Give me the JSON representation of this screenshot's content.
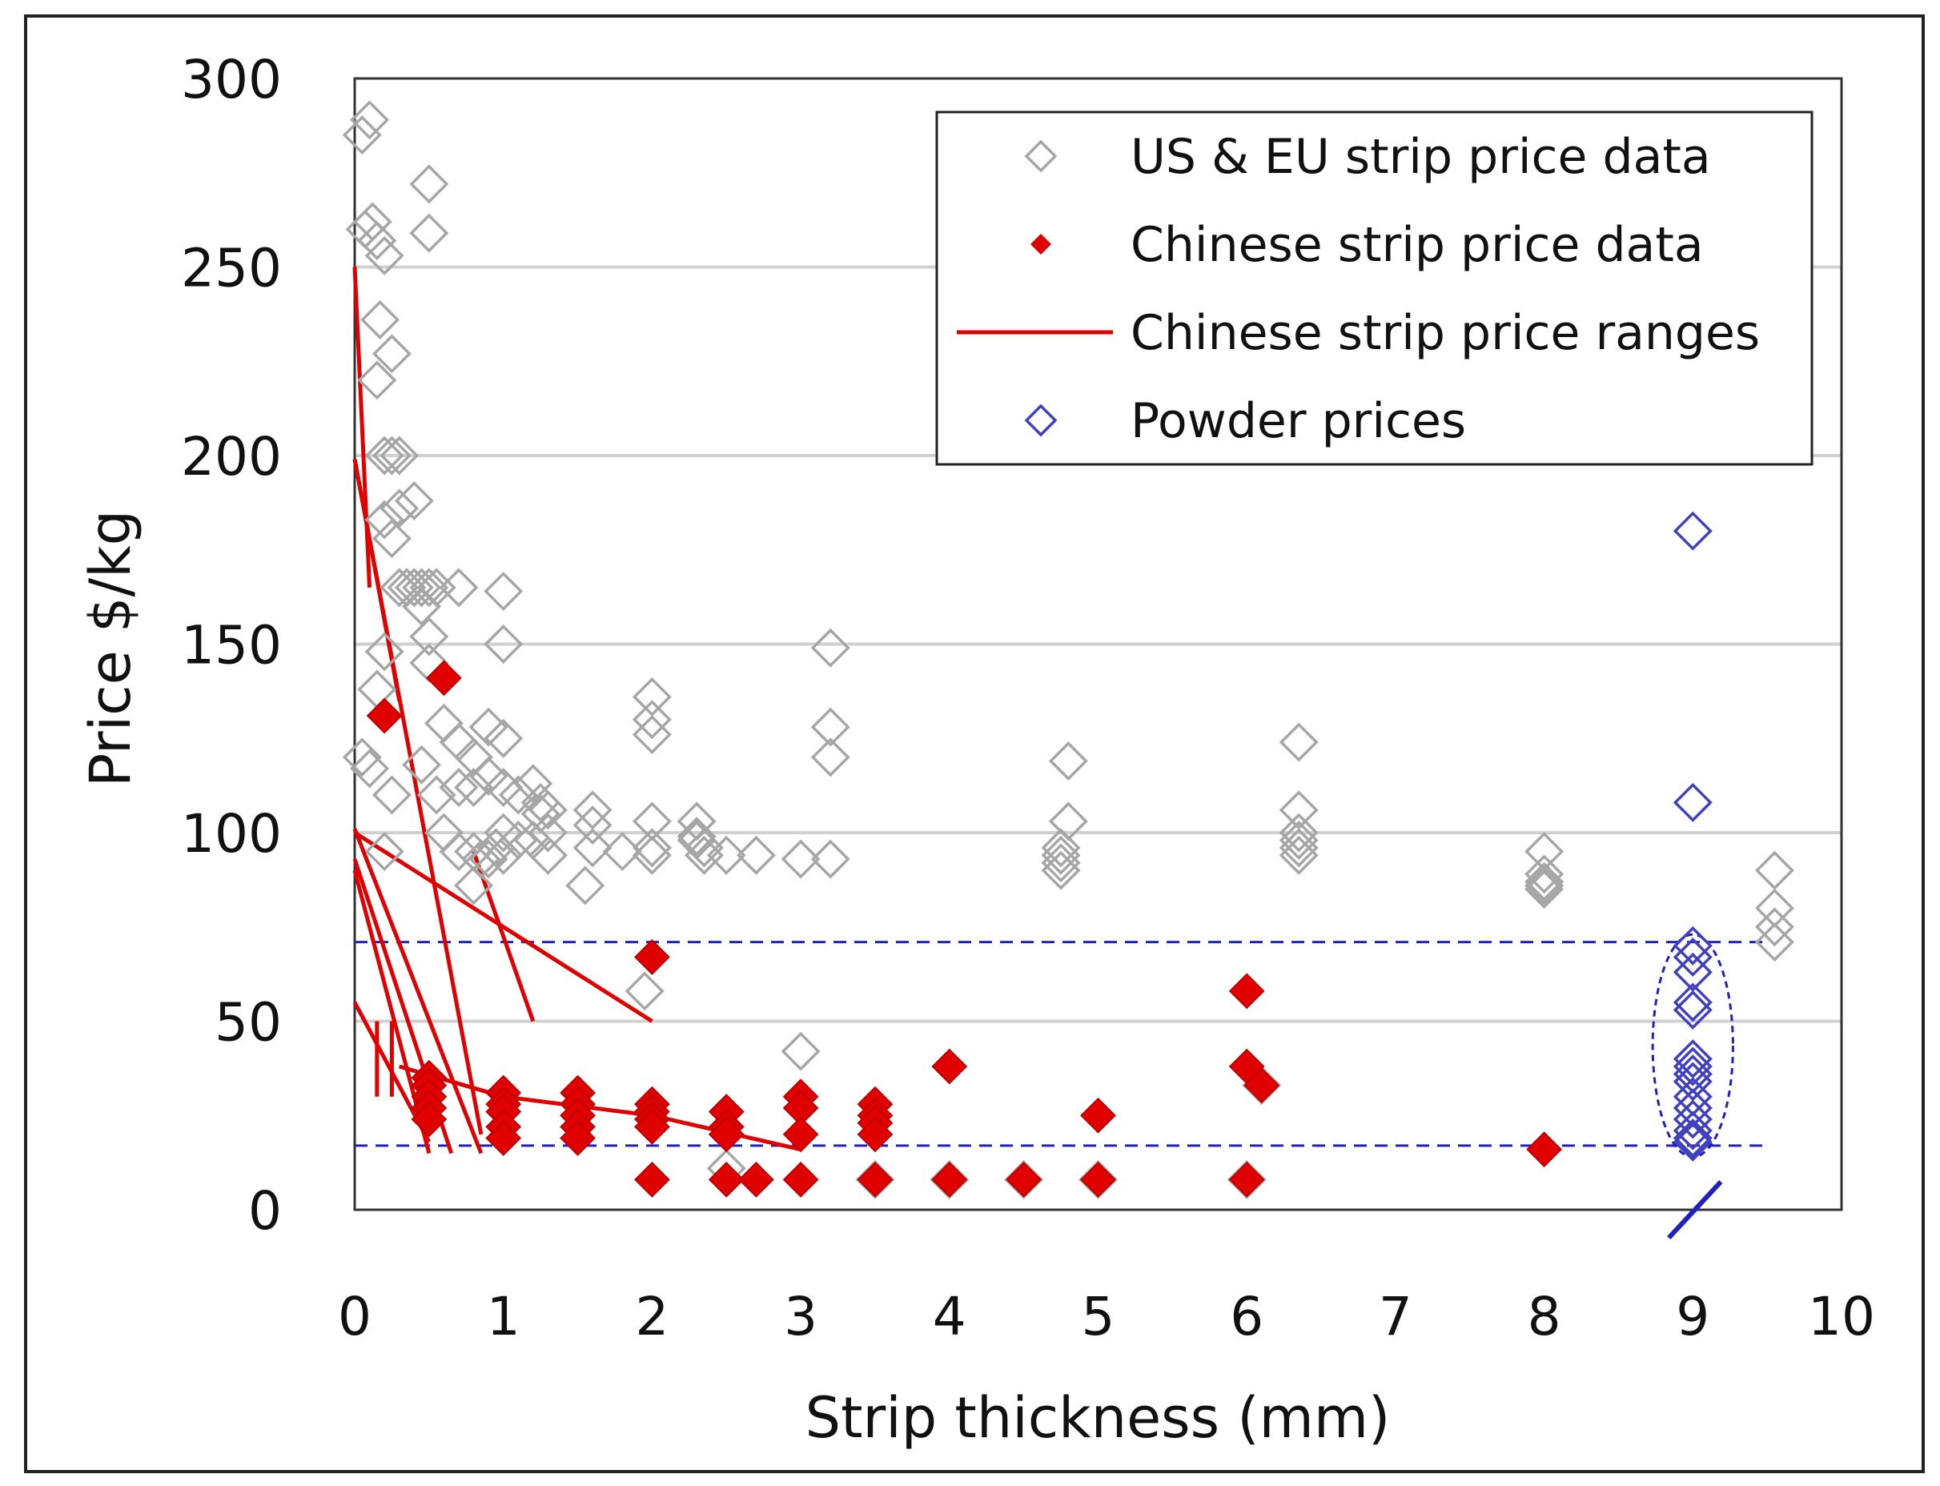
{
  "chart_data": {
    "type": "scatter",
    "title": "",
    "xlabel": "Strip thickness (mm)",
    "ylabel": "Price $/kg",
    "xlim": [
      0,
      10
    ],
    "ylim": [
      0,
      300
    ],
    "xticks": [
      "0",
      "1",
      "2",
      "3",
      "4",
      "5",
      "6",
      "7",
      "8",
      "9",
      "10"
    ],
    "yticks": [
      "0",
      "50",
      "100",
      "150",
      "200",
      "250",
      "300"
    ],
    "grid": "horizontal",
    "legend_position": "top-right",
    "legend": [
      {
        "label": "US & EU strip price data",
        "marker": "open-diamond",
        "color": "#a6a6a6"
      },
      {
        "label": "Chinese strip price data",
        "marker": "filled-diamond",
        "color": "#e00000"
      },
      {
        "label": "Chinese strip price ranges",
        "marker": "line",
        "color": "#e00000"
      },
      {
        "label": "Powder prices",
        "marker": "open-diamond",
        "color": "#4040c0"
      }
    ],
    "series": [
      {
        "name": "US & EU strip price data",
        "color": "#a6a6a6",
        "points": [
          [
            0.05,
            285
          ],
          [
            0.1,
            289
          ],
          [
            0.07,
            260
          ],
          [
            0.12,
            262
          ],
          [
            0.15,
            257
          ],
          [
            0.2,
            253
          ],
          [
            0.17,
            236
          ],
          [
            0.25,
            227
          ],
          [
            0.15,
            220
          ],
          [
            0.2,
            200
          ],
          [
            0.25,
            200
          ],
          [
            0.3,
            200
          ],
          [
            0.2,
            183
          ],
          [
            0.25,
            178
          ],
          [
            0.3,
            186
          ],
          [
            0.4,
            188
          ],
          [
            0.5,
            272
          ],
          [
            0.5,
            259
          ],
          [
            0.3,
            165
          ],
          [
            0.35,
            165
          ],
          [
            0.4,
            165
          ],
          [
            0.45,
            165
          ],
          [
            0.5,
            165
          ],
          [
            0.55,
            165
          ],
          [
            0.7,
            165
          ],
          [
            1.0,
            164
          ],
          [
            0.45,
            160
          ],
          [
            0.5,
            152
          ],
          [
            0.2,
            148
          ],
          [
            0.5,
            145
          ],
          [
            0.15,
            138
          ],
          [
            0.05,
            120
          ],
          [
            0.1,
            117
          ],
          [
            0.25,
            110
          ],
          [
            0.45,
            118
          ],
          [
            0.55,
            110
          ],
          [
            0.6,
            129
          ],
          [
            0.7,
            124
          ],
          [
            0.8,
            120
          ],
          [
            0.9,
            128
          ],
          [
            1.0,
            125
          ],
          [
            1.0,
            150
          ],
          [
            0.6,
            100
          ],
          [
            0.7,
            112
          ],
          [
            0.8,
            112
          ],
          [
            0.9,
            115
          ],
          [
            1.0,
            112
          ],
          [
            1.1,
            110
          ],
          [
            1.2,
            113
          ],
          [
            1.25,
            108
          ],
          [
            1.25,
            105
          ],
          [
            1.3,
            106
          ],
          [
            0.7,
            95
          ],
          [
            0.8,
            95
          ],
          [
            0.85,
            93
          ],
          [
            0.9,
            93
          ],
          [
            0.95,
            96
          ],
          [
            1.0,
            94
          ],
          [
            1.0,
            100
          ],
          [
            1.1,
            98
          ],
          [
            1.2,
            98
          ],
          [
            1.3,
            100
          ],
          [
            1.3,
            94
          ],
          [
            0.8,
            86
          ],
          [
            0.2,
            95
          ],
          [
            1.6,
            106
          ],
          [
            1.6,
            102
          ],
          [
            1.6,
            96
          ],
          [
            1.55,
            86
          ],
          [
            1.8,
            95
          ],
          [
            2.0,
            136
          ],
          [
            2.0,
            130
          ],
          [
            2.0,
            126
          ],
          [
            2.0,
            103
          ],
          [
            2.0,
            96
          ],
          [
            2.0,
            94
          ],
          [
            1.95,
            58
          ],
          [
            2.3,
            103
          ],
          [
            2.3,
            99
          ],
          [
            2.3,
            98
          ],
          [
            2.35,
            96
          ],
          [
            2.35,
            94
          ],
          [
            2.5,
            94
          ],
          [
            2.7,
            94
          ],
          [
            3.0,
            93
          ],
          [
            3.2,
            149
          ],
          [
            3.2,
            128
          ],
          [
            3.2,
            120
          ],
          [
            3.0,
            42
          ],
          [
            3.2,
            93
          ],
          [
            2.5,
            11
          ],
          [
            4.8,
            119
          ],
          [
            4.8,
            103
          ],
          [
            4.75,
            96
          ],
          [
            4.75,
            94
          ],
          [
            4.75,
            92
          ],
          [
            4.75,
            90
          ],
          [
            6.35,
            124
          ],
          [
            6.35,
            106
          ],
          [
            6.35,
            100
          ],
          [
            6.35,
            98
          ],
          [
            6.35,
            96
          ],
          [
            6.35,
            94
          ],
          [
            8.0,
            95
          ],
          [
            8.0,
            89
          ],
          [
            8.0,
            87
          ],
          [
            8.0,
            86
          ],
          [
            8.0,
            85
          ],
          [
            9.55,
            90
          ],
          [
            9.55,
            80
          ],
          [
            9.55,
            75
          ],
          [
            9.55,
            71
          ],
          [
            6.1,
            33
          ],
          [
            3.5,
            8
          ],
          [
            4.0,
            8
          ],
          [
            4.5,
            8
          ],
          [
            5.0,
            8
          ],
          [
            6.0,
            8
          ]
        ]
      },
      {
        "name": "Chinese strip price data",
        "color": "#e00000",
        "points": [
          [
            0.2,
            131
          ],
          [
            0.6,
            141
          ],
          [
            0.5,
            35
          ],
          [
            0.5,
            33
          ],
          [
            0.5,
            30
          ],
          [
            0.5,
            27
          ],
          [
            0.5,
            24
          ],
          [
            1.0,
            31
          ],
          [
            1.0,
            28
          ],
          [
            1.0,
            26
          ],
          [
            1.0,
            22
          ],
          [
            1.0,
            19
          ],
          [
            1.5,
            31
          ],
          [
            1.5,
            28
          ],
          [
            1.5,
            25
          ],
          [
            1.5,
            22
          ],
          [
            1.5,
            19
          ],
          [
            2.0,
            28
          ],
          [
            2.0,
            26
          ],
          [
            2.0,
            24
          ],
          [
            2.0,
            22
          ],
          [
            2.0,
            8
          ],
          [
            2.5,
            26
          ],
          [
            2.5,
            22
          ],
          [
            2.5,
            20
          ],
          [
            2.5,
            8
          ],
          [
            2.7,
            8
          ],
          [
            3.0,
            30
          ],
          [
            3.0,
            27
          ],
          [
            3.0,
            20
          ],
          [
            3.0,
            8
          ],
          [
            3.5,
            28
          ],
          [
            3.5,
            25
          ],
          [
            3.5,
            23
          ],
          [
            3.5,
            20
          ],
          [
            3.5,
            8
          ],
          [
            4.0,
            38
          ],
          [
            4.0,
            8
          ],
          [
            4.5,
            8
          ],
          [
            5.0,
            25
          ],
          [
            5.0,
            8
          ],
          [
            6.0,
            58
          ],
          [
            6.0,
            38
          ],
          [
            6.1,
            33
          ],
          [
            6.0,
            8
          ],
          [
            8.0,
            16
          ],
          [
            2.0,
            67
          ]
        ]
      },
      {
        "name": "Chinese strip price ranges",
        "color": "#e00000",
        "segments": [
          [
            [
              0,
              250
            ],
            [
              0.1,
              165
            ]
          ],
          [
            [
              0,
              199
            ],
            [
              0.3,
              135
            ]
          ],
          [
            [
              0,
              199
            ],
            [
              0.85,
              20
            ]
          ],
          [
            [
              0,
              100
            ],
            [
              2.0,
              50
            ]
          ],
          [
            [
              0,
              101
            ],
            [
              0.85,
              15
            ]
          ],
          [
            [
              0,
              93
            ],
            [
              0.65,
              15
            ]
          ],
          [
            [
              0,
              90
            ],
            [
              0.5,
              15
            ]
          ],
          [
            [
              0,
              55
            ],
            [
              0.5,
              18
            ]
          ],
          [
            [
              0.15,
              50
            ],
            [
              0.15,
              30
            ]
          ],
          [
            [
              0.25,
              50
            ],
            [
              0.25,
              30
            ]
          ],
          [
            [
              0.8,
              95
            ],
            [
              1.2,
              50
            ]
          ],
          [
            [
              0.3,
              38
            ],
            [
              1.0,
              30
            ]
          ],
          [
            [
              1.0,
              30
            ],
            [
              2.0,
              25
            ]
          ],
          [
            [
              2.0,
              25
            ],
            [
              3.0,
              16
            ]
          ]
        ]
      },
      {
        "name": "Powder prices",
        "color": "#4040c0",
        "points": [
          [
            9,
            180
          ],
          [
            9,
            108
          ],
          [
            9,
            70
          ],
          [
            9,
            67
          ],
          [
            9,
            63
          ],
          [
            9,
            55
          ],
          [
            9,
            53
          ],
          [
            9,
            40
          ],
          [
            9,
            38
          ],
          [
            9,
            36
          ],
          [
            9,
            34
          ],
          [
            9,
            30
          ],
          [
            9,
            27
          ],
          [
            9,
            24
          ],
          [
            9,
            21
          ],
          [
            9,
            19
          ],
          [
            9,
            18
          ]
        ]
      }
    ],
    "annotations": [
      {
        "type": "hline",
        "y": 71,
        "x_from": 0,
        "x_to": 9.5,
        "style": "dashed",
        "color": "#2020c0"
      },
      {
        "type": "hline",
        "y": 17,
        "x_from": 0,
        "x_to": 9.5,
        "style": "dashed",
        "color": "#2020c0"
      },
      {
        "type": "ellipse",
        "cx": 9,
        "cy": 43.5,
        "rx": 0.27,
        "ry": 29.5,
        "style": "dashed",
        "color": "#2020c0"
      },
      {
        "type": "axis-break",
        "x": 9,
        "color": "#2020c0"
      }
    ]
  }
}
